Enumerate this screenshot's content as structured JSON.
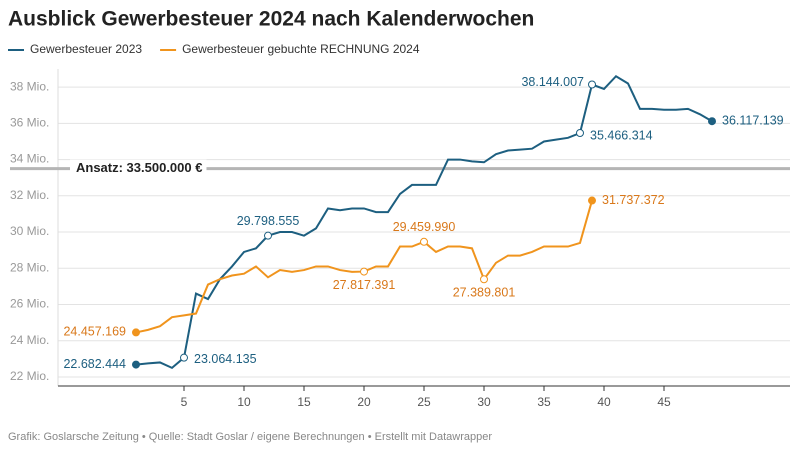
{
  "chart_data": {
    "type": "line",
    "title": "Ausblick Gewerbesteuer 2024 nach Kalenderwochen",
    "source": "Grafik: Goslarsche Zeitung • Quelle: Stadt Goslar / eigene Berechnungen • Erstellt mit Datawrapper",
    "x": [
      1,
      2,
      3,
      4,
      5,
      6,
      7,
      8,
      9,
      10,
      11,
      12,
      13,
      14,
      15,
      16,
      17,
      18,
      19,
      20,
      21,
      22,
      23,
      24,
      25,
      26,
      27,
      28,
      29,
      30,
      31,
      32,
      33,
      34,
      35,
      36,
      37,
      38,
      39,
      40,
      41,
      42,
      43,
      44,
      45,
      46,
      47,
      48,
      49
    ],
    "series": [
      {
        "name": "Gewerbesteuer 2023",
        "color": "#1d5f80",
        "values": [
          22.682444,
          22.75,
          22.8,
          22.5,
          23.064135,
          26.6,
          26.3,
          27.4,
          28.1,
          28.9,
          29.1,
          29.798555,
          30.0,
          30.0,
          29.8,
          30.2,
          31.3,
          31.2,
          31.3,
          31.3,
          31.1,
          31.1,
          32.1,
          32.6,
          32.6,
          32.6,
          34.0,
          34.0,
          33.9,
          33.85,
          34.3,
          34.5,
          34.55,
          34.6,
          35.0,
          35.1,
          35.2,
          35.466314,
          38.144007,
          37.9,
          38.6,
          38.2,
          36.8,
          36.8,
          36.75,
          36.75,
          36.8,
          36.5,
          36.117139
        ],
        "value_labels": [
          "22.682.444",
          null,
          null,
          null,
          "23.064.135",
          null,
          null,
          null,
          null,
          null,
          null,
          "29.798.555",
          null,
          null,
          null,
          null,
          null,
          null,
          null,
          null,
          null,
          null,
          null,
          null,
          null,
          null,
          null,
          null,
          null,
          null,
          null,
          null,
          null,
          null,
          null,
          null,
          null,
          "35.466.314",
          "38.144.007",
          null,
          null,
          null,
          null,
          null,
          null,
          null,
          null,
          null,
          "36.117.139"
        ]
      },
      {
        "name": "Gewerbesteuer gebuchte RECHNUNG 2024",
        "color": "#f0941d",
        "values": [
          24.457169,
          24.6,
          24.8,
          25.3,
          25.4,
          25.5,
          27.1,
          27.4,
          27.6,
          27.7,
          28.1,
          27.5,
          27.9,
          27.8,
          27.9,
          28.1,
          28.1,
          27.9,
          27.8,
          27.817391,
          28.1,
          28.1,
          29.2,
          29.2,
          29.45999,
          28.9,
          29.2,
          29.2,
          29.1,
          27.389801,
          28.3,
          28.7,
          28.7,
          28.9,
          29.2,
          29.2,
          29.2,
          29.4,
          31.737372,
          null,
          null,
          null,
          null,
          null,
          null,
          null,
          null,
          null,
          null
        ],
        "value_labels": [
          "24.457.169",
          null,
          null,
          null,
          null,
          null,
          null,
          null,
          null,
          null,
          null,
          null,
          null,
          null,
          null,
          null,
          null,
          null,
          null,
          "27.817.391",
          null,
          null,
          null,
          null,
          "29.459.990",
          null,
          null,
          null,
          null,
          "27.389.801",
          null,
          null,
          null,
          null,
          null,
          null,
          null,
          null,
          "31.737.372",
          null,
          null,
          null,
          null,
          null,
          null,
          null,
          null,
          null,
          null
        ]
      }
    ],
    "reference_line": {
      "value": 33.5,
      "label": "Ansatz: 33.500.000 €"
    },
    "xlim": [
      -5.5,
      55.5
    ],
    "xticks": [
      5,
      10,
      15,
      20,
      25,
      30,
      35,
      40,
      45
    ],
    "ylim": [
      21.5,
      39
    ],
    "yticks": [
      {
        "value": 22,
        "label": "22 Mio."
      },
      {
        "value": 24,
        "label": "24 Mio."
      },
      {
        "value": 26,
        "label": "26 Mio."
      },
      {
        "value": 28,
        "label": "28 Mio."
      },
      {
        "value": 30,
        "label": "30 Mio."
      },
      {
        "value": 32,
        "label": "32 Mio."
      },
      {
        "value": 34,
        "label": "34 Mio."
      },
      {
        "value": 36,
        "label": "36 Mio."
      },
      {
        "value": 38,
        "label": "38 Mio."
      }
    ],
    "grid": true
  }
}
